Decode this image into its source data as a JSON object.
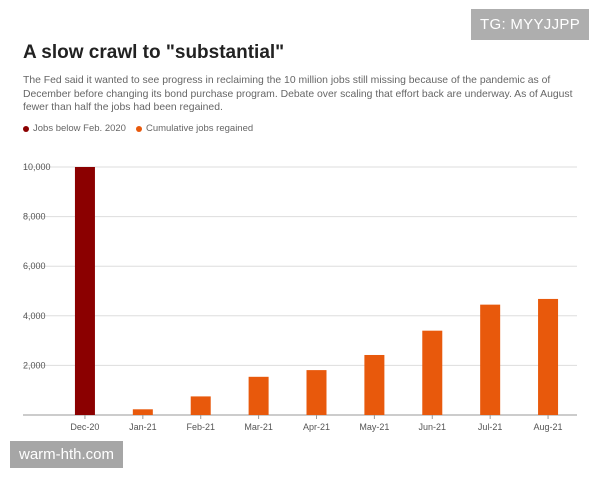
{
  "watermarks": {
    "top_right": "TG: MYYJJPP",
    "bottom_left": "warm-hth.com"
  },
  "colors": {
    "jobs_below": "#8b0000",
    "regained": "#e8590c",
    "grid": "#dddddd"
  },
  "chart_data": {
    "type": "bar",
    "title": "A slow crawl to \"substantial\"",
    "subtitle": "The Fed said it wanted to see progress in reclaiming the 10 million jobs still missing because of the pandemic as of December before changing its bond purchase program. Debate over scaling that effort back are underway. As of August fewer than half the jobs had been regained.",
    "categories": [
      "Dec-20",
      "Jan-21",
      "Feb-21",
      "Mar-21",
      "Apr-21",
      "May-21",
      "Jun-21",
      "Jul-21",
      "Aug-21"
    ],
    "series": [
      {
        "name": "Jobs below Feb. 2020",
        "color": "#8b0000",
        "values": [
          10000,
          null,
          null,
          null,
          null,
          null,
          null,
          null,
          null
        ]
      },
      {
        "name": "Cumulative jobs regained",
        "color": "#e8590c",
        "values": [
          null,
          230,
          750,
          1540,
          1810,
          2420,
          3400,
          4450,
          4680
        ]
      }
    ],
    "ylim": [
      0,
      10000
    ],
    "yticks": [
      10000,
      8000,
      6000,
      4000,
      2000
    ],
    "ytick_labels": [
      "10,000",
      "8,000",
      "6,000",
      "4,000",
      "2,000"
    ],
    "xlabel": "",
    "ylabel": "",
    "legend_position": "top-left"
  }
}
